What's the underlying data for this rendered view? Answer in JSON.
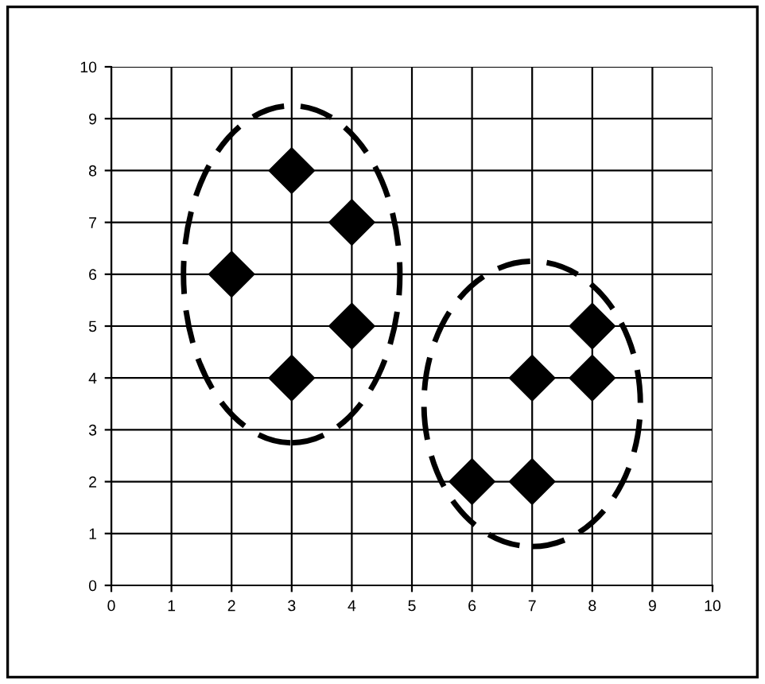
{
  "chart_data": {
    "type": "scatter",
    "marker": "diamond",
    "grid": true,
    "xlim": [
      0,
      10
    ],
    "ylim": [
      0,
      10
    ],
    "xticks": [
      0,
      1,
      2,
      3,
      4,
      5,
      6,
      7,
      8,
      9,
      10
    ],
    "yticks": [
      0,
      1,
      2,
      3,
      4,
      5,
      6,
      7,
      8,
      9,
      10
    ],
    "series": [
      {
        "color": "#000000",
        "x": [
          2,
          3,
          4,
          4,
          3
        ],
        "values": [
          6,
          8,
          7,
          5,
          4
        ]
      },
      {
        "color": "#000000",
        "x": [
          6,
          7,
          7,
          8,
          8
        ],
        "values": [
          2,
          2,
          4,
          4,
          5
        ]
      }
    ]
  }
}
